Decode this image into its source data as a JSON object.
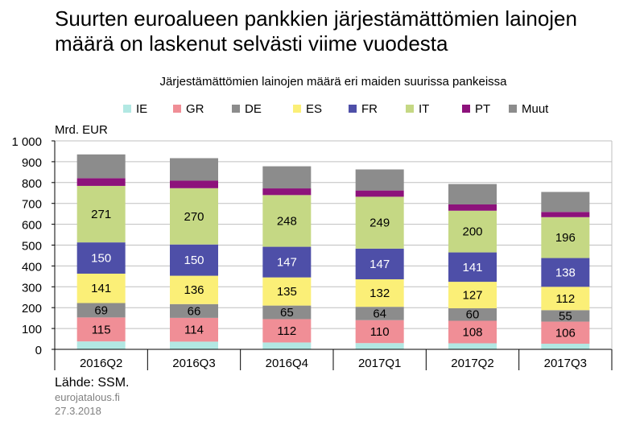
{
  "title": "Suurten euroalueen pankkien järjestämättömien lainojen määrä on laskenut selvästi viime vuodesta",
  "source": "Lähde: SSM.",
  "site": "eurojatalous.fi",
  "date": "27.3.2018",
  "chart_data": {
    "type": "bar",
    "stacked": true,
    "subtitle": "Järjestämättömien lainojen määrä eri maiden suurissa pankeissa",
    "ylabel": "Mrd. EUR",
    "ylim": [
      0,
      1000
    ],
    "yticks": [
      0,
      100,
      200,
      300,
      400,
      500,
      600,
      700,
      800,
      900,
      1000
    ],
    "ytick_labels": [
      "0",
      "100",
      "200",
      "300",
      "400",
      "500",
      "600",
      "700",
      "800",
      "900",
      "1 000"
    ],
    "grid": true,
    "legend_position": "top",
    "categories": [
      "2016Q2",
      "2016Q3",
      "2016Q4",
      "2017Q1",
      "2017Q2",
      "2017Q3"
    ],
    "series": [
      {
        "name": "IE",
        "color": "#b2e8e3",
        "values": [
          38,
          37,
          33,
          30,
          29,
          27
        ],
        "show_labels": false
      },
      {
        "name": "GR",
        "color": "#f08e96",
        "values": [
          115,
          114,
          112,
          110,
          108,
          106
        ],
        "show_labels": true
      },
      {
        "name": "DE",
        "color": "#8c8c8c",
        "values": [
          69,
          66,
          65,
          64,
          60,
          55
        ],
        "show_labels": true
      },
      {
        "name": "ES",
        "color": "#fbef77",
        "values": [
          141,
          136,
          135,
          132,
          127,
          112
        ],
        "show_labels": true
      },
      {
        "name": "FR",
        "color": "#4e4fa8",
        "values": [
          150,
          150,
          147,
          147,
          141,
          138
        ],
        "show_labels": true
      },
      {
        "name": "IT",
        "color": "#c5d884",
        "values": [
          271,
          270,
          248,
          249,
          200,
          196
        ],
        "show_labels": true
      },
      {
        "name": "PT",
        "color": "#8d127b",
        "values": [
          37,
          36,
          32,
          30,
          30,
          25
        ],
        "show_labels": false
      },
      {
        "name": "Muut",
        "color": "#8c8c8c",
        "values": [
          114,
          108,
          106,
          101,
          98,
          96
        ],
        "show_labels": false
      }
    ]
  }
}
